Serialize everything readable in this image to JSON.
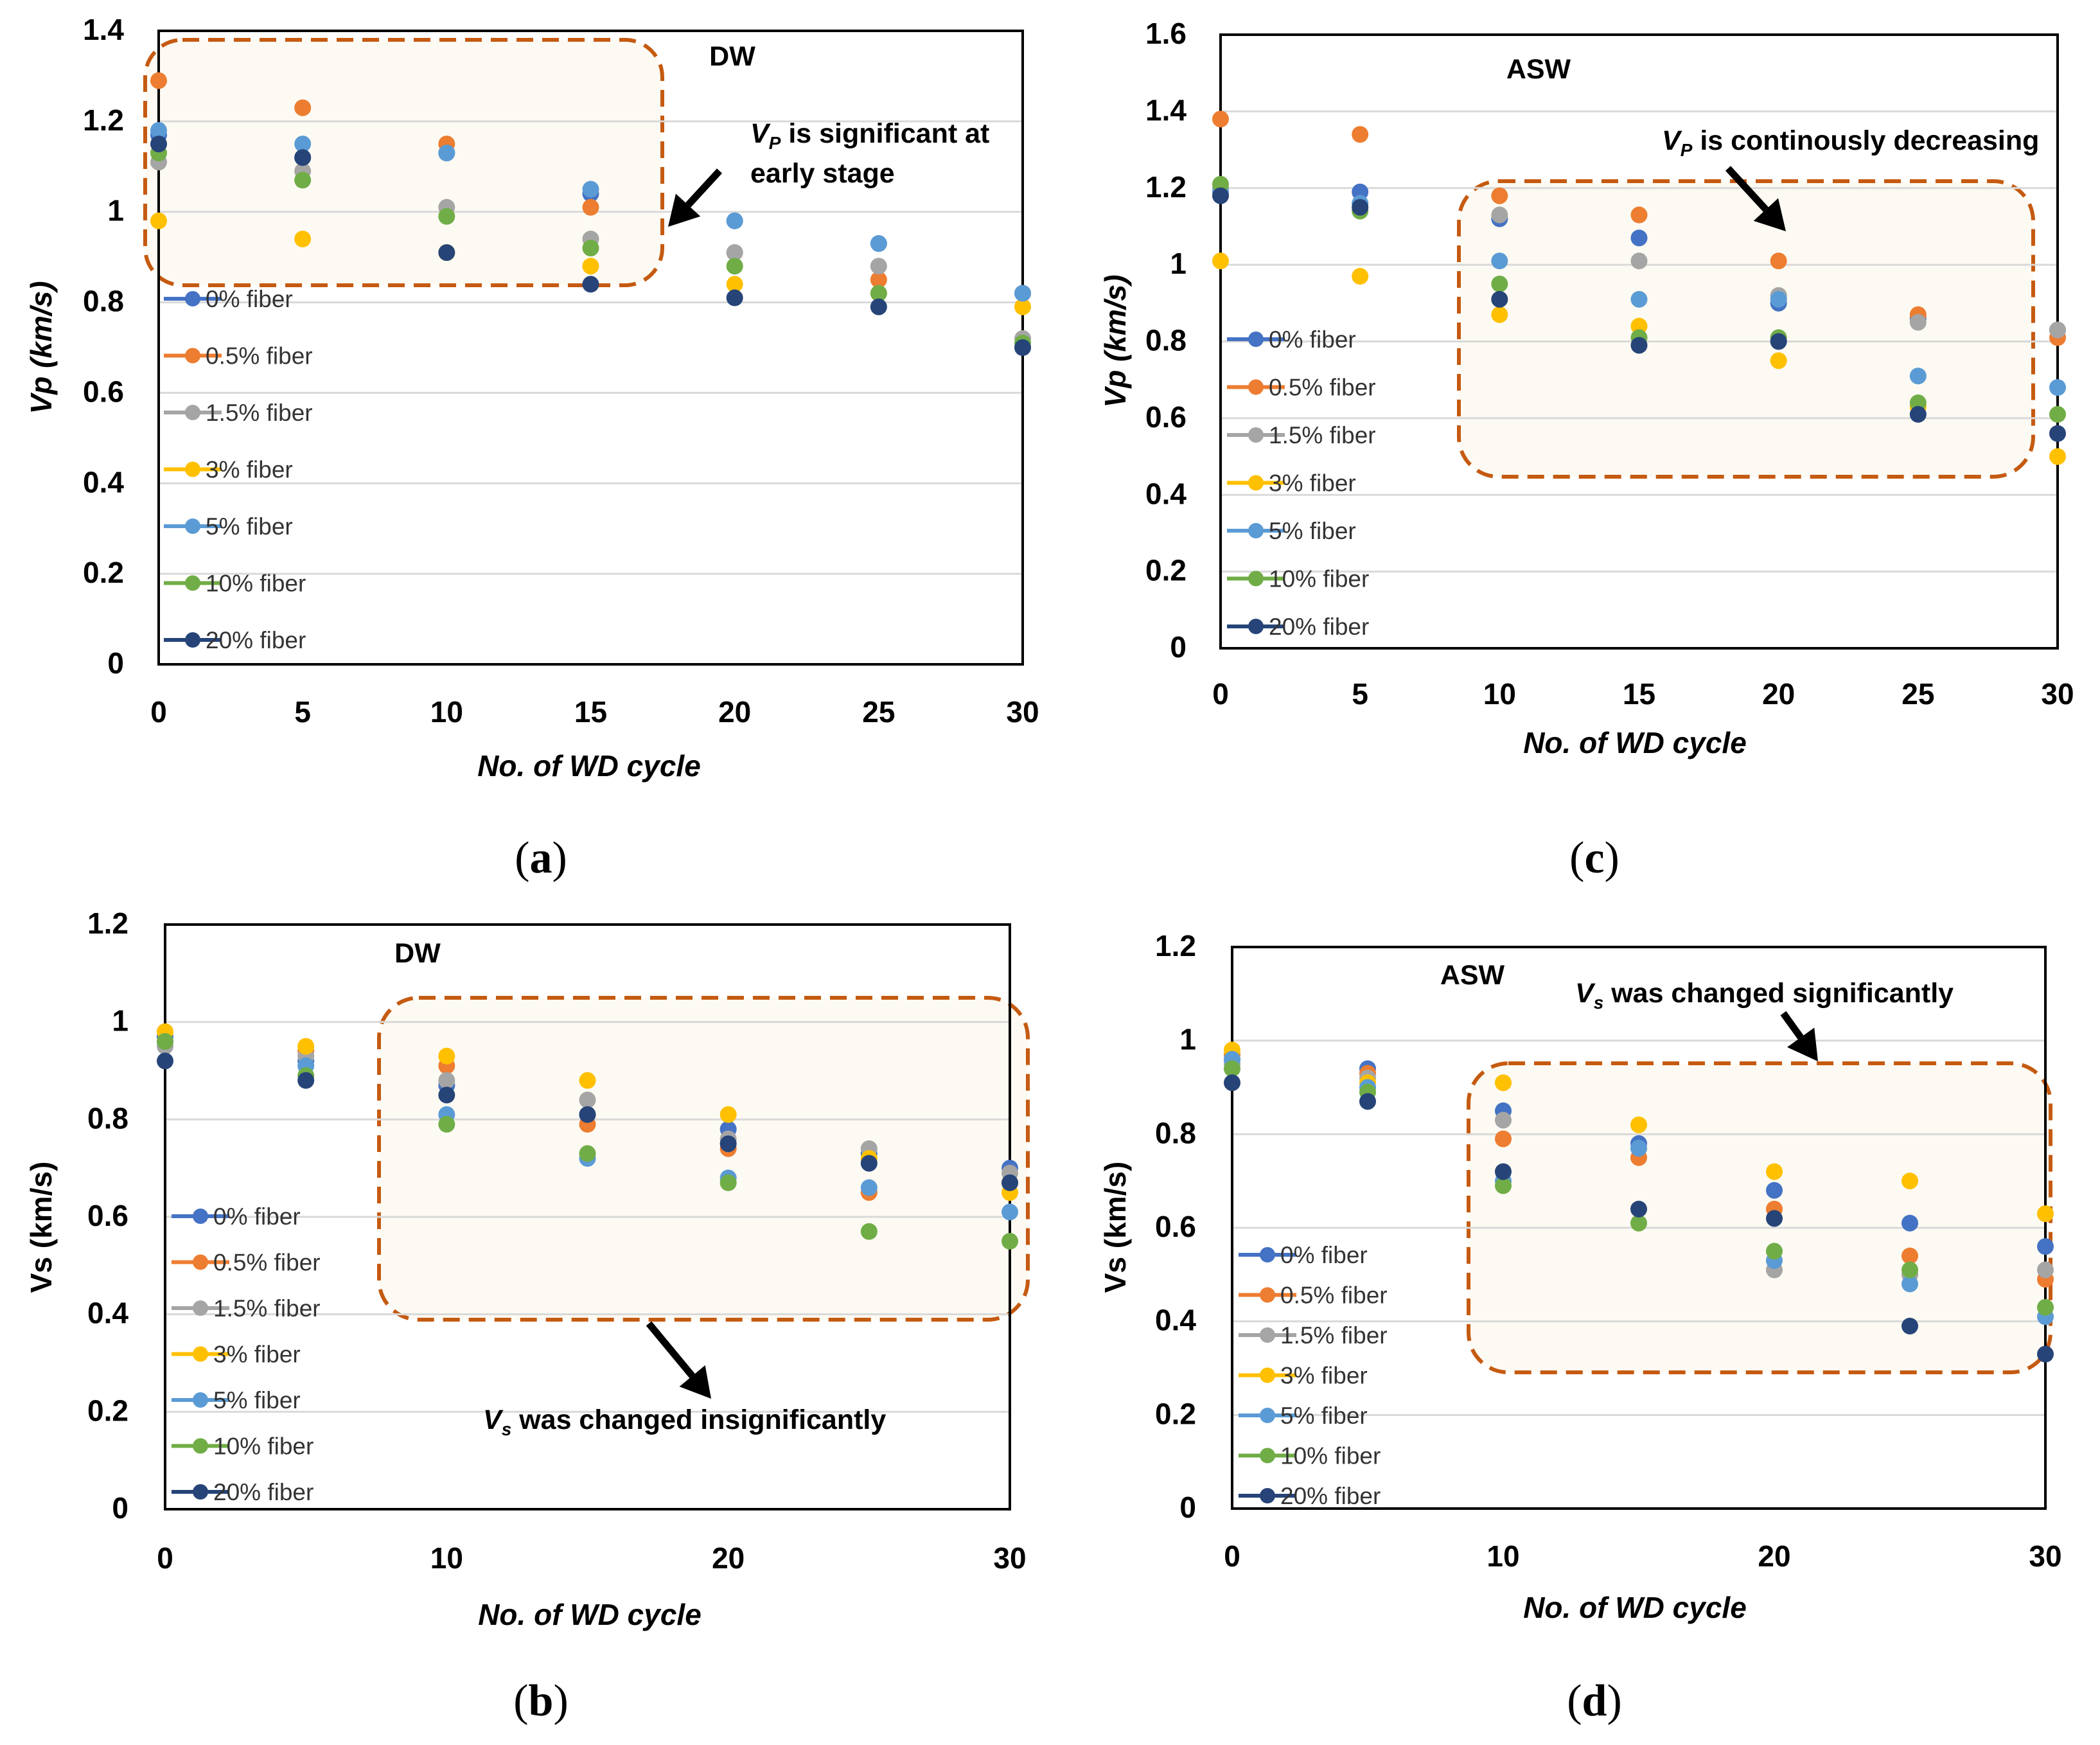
{
  "colors": {
    "series": [
      "#4472c4",
      "#ed7d31",
      "#a5a5a5",
      "#ffc000",
      "#5b9bd5",
      "#70ad47",
      "#264478"
    ],
    "highlight_border": "#c55a11",
    "highlight_fill": "#fcfaf2"
  },
  "chart_data": [
    {
      "type": "scatter",
      "panel_label": "a",
      "title": "DW",
      "xlabel": "No. of WD cycle",
      "ylabel": "Vp (km/s)",
      "xticks": [
        0,
        5,
        10,
        15,
        20,
        25,
        30
      ],
      "yticks": [
        0,
        0.2,
        0.4,
        0.6,
        0.8,
        1,
        1.2,
        1.4
      ],
      "yticklabels": [
        "0",
        "0.2",
        "0.4",
        "0.6",
        "0.8",
        "1",
        "1.2",
        "1.4"
      ],
      "xlim": [
        0,
        30
      ],
      "ylim": [
        0,
        1.4
      ],
      "annotation": {
        "symbol": "V",
        "sub": "P",
        "text_line1": " is significant at",
        "text_line2": "early stage"
      },
      "series": [
        {
          "name": "0% fiber",
          "x": [
            0,
            5,
            10,
            15,
            20,
            25,
            30
          ],
          "values": [
            1.17,
            1.12,
            1.13,
            1.04,
            0.98,
            0.93,
            0.82
          ]
        },
        {
          "name": "0.5% fiber",
          "x": [
            0,
            5,
            10,
            15,
            20,
            25,
            30
          ],
          "values": [
            1.29,
            1.23,
            1.15,
            1.01,
            0.91,
            0.85,
            0.82
          ]
        },
        {
          "name": "1.5% fiber",
          "x": [
            0,
            5,
            10,
            15,
            20,
            25,
            30
          ],
          "values": [
            1.11,
            1.09,
            1.01,
            0.94,
            0.91,
            0.88,
            0.72
          ]
        },
        {
          "name": "3% fiber",
          "x": [
            0,
            5,
            10,
            15,
            20,
            25,
            30
          ],
          "values": [
            0.98,
            0.94,
            0.91,
            0.88,
            0.84,
            0.82,
            0.79
          ]
        },
        {
          "name": "5% fiber",
          "x": [
            0,
            5,
            10,
            15,
            20,
            25,
            30
          ],
          "values": [
            1.18,
            1.15,
            1.13,
            1.05,
            0.98,
            0.93,
            0.82
          ]
        },
        {
          "name": "10% fiber",
          "x": [
            0,
            5,
            10,
            15,
            20,
            25,
            30
          ],
          "values": [
            1.13,
            1.07,
            0.99,
            0.92,
            0.88,
            0.82,
            0.71
          ]
        },
        {
          "name": "20% fiber",
          "x": [
            0,
            5,
            10,
            15,
            20,
            25,
            30
          ],
          "values": [
            1.15,
            1.12,
            0.91,
            0.84,
            0.81,
            0.79,
            0.7
          ]
        }
      ]
    },
    {
      "type": "scatter",
      "panel_label": "b",
      "title": "DW",
      "xlabel": "No. of WD cycle",
      "ylabel": "Vs (km/s)",
      "xticks": [
        0,
        10,
        20,
        30
      ],
      "yticks": [
        0,
        0.2,
        0.4,
        0.6,
        0.8,
        1,
        1.2
      ],
      "yticklabels": [
        "0",
        "0.2",
        "0.4",
        "0.6",
        "0.8",
        "1",
        "1.2"
      ],
      "xlim": [
        0,
        30
      ],
      "ylim": [
        0,
        1.2
      ],
      "annotation": {
        "symbol": "V",
        "sub": "s",
        "text_line1": " was changed insignificantly"
      },
      "series": [
        {
          "name": "0% fiber",
          "x": [
            0,
            5,
            10,
            15,
            20,
            25,
            30
          ],
          "values": [
            0.97,
            0.92,
            0.87,
            0.81,
            0.78,
            0.73,
            0.7
          ]
        },
        {
          "name": "0.5% fiber",
          "x": [
            0,
            5,
            10,
            15,
            20,
            25,
            30
          ],
          "values": [
            0.98,
            0.94,
            0.91,
            0.79,
            0.74,
            0.65,
            0.67
          ]
        },
        {
          "name": "1.5% fiber",
          "x": [
            0,
            5,
            10,
            15,
            20,
            25,
            30
          ],
          "values": [
            0.95,
            0.93,
            0.88,
            0.84,
            0.76,
            0.74,
            0.69
          ]
        },
        {
          "name": "3% fiber",
          "x": [
            0,
            5,
            10,
            15,
            20,
            25,
            30
          ],
          "values": [
            0.98,
            0.95,
            0.93,
            0.88,
            0.81,
            0.72,
            0.65
          ]
        },
        {
          "name": "5% fiber",
          "x": [
            0,
            5,
            10,
            15,
            20,
            25,
            30
          ],
          "values": [
            0.96,
            0.91,
            0.81,
            0.72,
            0.68,
            0.66,
            0.61
          ]
        },
        {
          "name": "10% fiber",
          "x": [
            0,
            5,
            10,
            15,
            20,
            25,
            30
          ],
          "values": [
            0.96,
            0.89,
            0.79,
            0.73,
            0.67,
            0.57,
            0.55
          ]
        },
        {
          "name": "20% fiber",
          "x": [
            0,
            5,
            10,
            15,
            20,
            25,
            30
          ],
          "values": [
            0.92,
            0.88,
            0.85,
            0.81,
            0.75,
            0.71,
            0.67
          ]
        }
      ]
    },
    {
      "type": "scatter",
      "panel_label": "c",
      "title": "ASW",
      "xlabel": "No. of WD cycle",
      "ylabel": "Vp (km/s)",
      "xticks": [
        0,
        5,
        10,
        15,
        20,
        25,
        30
      ],
      "yticks": [
        0,
        0.2,
        0.4,
        0.6,
        0.8,
        1,
        1.2,
        1.4,
        1.6
      ],
      "yticklabels": [
        "0",
        "0.2",
        "0.4",
        "0.6",
        "0.8",
        "1",
        "1.2",
        "1.4",
        "1.6"
      ],
      "xlim": [
        0,
        30
      ],
      "ylim": [
        0,
        1.6
      ],
      "annotation": {
        "symbol": "V",
        "sub": "P",
        "text_line1": " is continously decreasing"
      },
      "series": [
        {
          "name": "0% fiber",
          "x": [
            0,
            5,
            10,
            15,
            20,
            25,
            30
          ],
          "values": [
            1.19,
            1.19,
            1.12,
            1.07,
            0.9,
            0.86,
            0.83
          ]
        },
        {
          "name": "0.5% fiber",
          "x": [
            0,
            5,
            10,
            15,
            20,
            25,
            30
          ],
          "values": [
            1.38,
            1.34,
            1.18,
            1.13,
            1.01,
            0.87,
            0.81
          ]
        },
        {
          "name": "1.5% fiber",
          "x": [
            0,
            5,
            10,
            15,
            20,
            25,
            30
          ],
          "values": [
            1.2,
            1.16,
            1.13,
            1.01,
            0.92,
            0.85,
            0.83
          ]
        },
        {
          "name": "3% fiber",
          "x": [
            0,
            5,
            10,
            15,
            20,
            25,
            30
          ],
          "values": [
            1.01,
            0.97,
            0.87,
            0.84,
            0.75,
            0.63,
            0.5
          ]
        },
        {
          "name": "5% fiber",
          "x": [
            0,
            5,
            10,
            15,
            20,
            25,
            30
          ],
          "values": [
            1.19,
            1.16,
            1.01,
            0.91,
            0.91,
            0.71,
            0.68
          ]
        },
        {
          "name": "10% fiber",
          "x": [
            0,
            5,
            10,
            15,
            20,
            25,
            30
          ],
          "values": [
            1.21,
            1.14,
            0.95,
            0.81,
            0.81,
            0.64,
            0.61
          ]
        },
        {
          "name": "20% fiber",
          "x": [
            0,
            5,
            10,
            15,
            20,
            25,
            30
          ],
          "values": [
            1.18,
            1.15,
            0.91,
            0.79,
            0.8,
            0.61,
            0.56
          ]
        }
      ]
    },
    {
      "type": "scatter",
      "panel_label": "d",
      "title": "ASW",
      "xlabel": "No. of WD cycle",
      "ylabel": "Vs (km/s)",
      "xticks": [
        0,
        10,
        20,
        30
      ],
      "yticks": [
        0,
        0.2,
        0.4,
        0.6,
        0.8,
        1,
        1.2
      ],
      "yticklabels": [
        "0",
        "0.2",
        "0.4",
        "0.6",
        "0.8",
        "1",
        "1.2"
      ],
      "xlim": [
        0,
        30
      ],
      "ylim": [
        0,
        1.2
      ],
      "annotation": {
        "symbol": "V",
        "sub": "s",
        "text_line1": " was changed significantly"
      },
      "series": [
        {
          "name": "0% fiber",
          "x": [
            0,
            5,
            10,
            15,
            20,
            25,
            30
          ],
          "values": [
            0.96,
            0.94,
            0.85,
            0.78,
            0.68,
            0.61,
            0.56
          ]
        },
        {
          "name": "0.5% fiber",
          "x": [
            0,
            5,
            10,
            15,
            20,
            25,
            30
          ],
          "values": [
            0.97,
            0.93,
            0.79,
            0.75,
            0.64,
            0.54,
            0.49
          ]
        },
        {
          "name": "1.5% fiber",
          "x": [
            0,
            5,
            10,
            15,
            20,
            25,
            30
          ],
          "values": [
            0.95,
            0.92,
            0.83,
            0.77,
            0.51,
            0.5,
            0.51
          ]
        },
        {
          "name": "3% fiber",
          "x": [
            0,
            5,
            10,
            15,
            20,
            25,
            30
          ],
          "values": [
            0.98,
            0.91,
            0.91,
            0.82,
            0.72,
            0.7,
            0.63
          ]
        },
        {
          "name": "5% fiber",
          "x": [
            0,
            5,
            10,
            15,
            20,
            25,
            30
          ],
          "values": [
            0.96,
            0.9,
            0.7,
            0.77,
            0.53,
            0.48,
            0.41
          ]
        },
        {
          "name": "10% fiber",
          "x": [
            0,
            5,
            10,
            15,
            20,
            25,
            30
          ],
          "values": [
            0.94,
            0.89,
            0.69,
            0.61,
            0.55,
            0.51,
            0.43
          ]
        },
        {
          "name": "20% fiber",
          "x": [
            0,
            5,
            10,
            15,
            20,
            25,
            30
          ],
          "values": [
            0.91,
            0.87,
            0.72,
            0.64,
            0.62,
            0.39,
            0.33
          ]
        }
      ]
    }
  ]
}
